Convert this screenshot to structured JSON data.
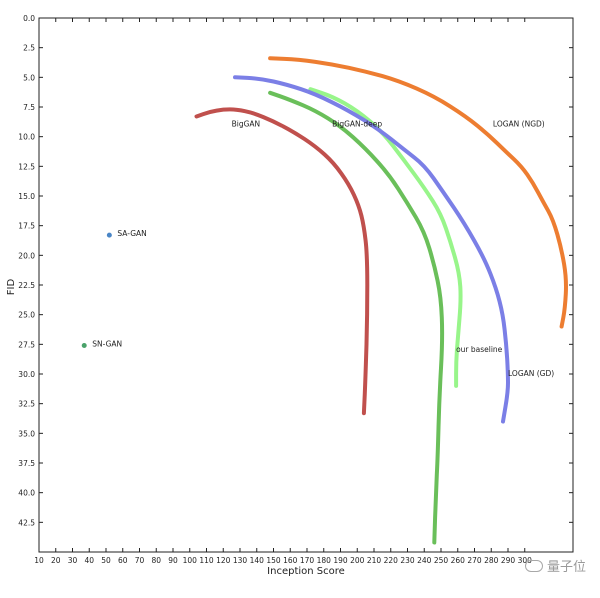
{
  "chart_data": {
    "type": "line",
    "xlabel": "Inception Score",
    "ylabel": "FID",
    "xlim": [
      10,
      325
    ],
    "ylim": [
      45.0,
      0.0
    ],
    "x_ticks": [
      10,
      20,
      30,
      40,
      50,
      60,
      70,
      80,
      90,
      100,
      110,
      120,
      130,
      140,
      150,
      160,
      170,
      180,
      190,
      200,
      210,
      220,
      230,
      240,
      250,
      260,
      270,
      280,
      290,
      300
    ],
    "y_ticks": [
      0.0,
      2.5,
      5.0,
      7.5,
      10.0,
      12.5,
      15.0,
      17.5,
      20.0,
      22.5,
      25.0,
      27.5,
      30.0,
      32.5,
      35.0,
      37.5,
      40.0,
      42.5
    ],
    "series": [
      {
        "name": "BigGAN",
        "color": "#c0504d",
        "points": [
          [
            104,
            8.3
          ],
          [
            112,
            7.9
          ],
          [
            120,
            7.7
          ],
          [
            128,
            7.7
          ],
          [
            138,
            8.0
          ],
          [
            150,
            8.7
          ],
          [
            162,
            9.6
          ],
          [
            175,
            10.8
          ],
          [
            186,
            12.2
          ],
          [
            195,
            14.0
          ],
          [
            201,
            15.8
          ],
          [
            204,
            17.5
          ],
          [
            206,
            20.0
          ],
          [
            206,
            25.0
          ],
          [
            205,
            30.0
          ],
          [
            204,
            33.3
          ]
        ],
        "label": {
          "text": "BigGAN",
          "x": 125,
          "y": 8.9
        }
      },
      {
        "name": "BigGAN-deep",
        "color": "#6abf5a",
        "points": [
          [
            148,
            6.3
          ],
          [
            160,
            6.9
          ],
          [
            175,
            7.8
          ],
          [
            190,
            9.1
          ],
          [
            205,
            11.0
          ],
          [
            219,
            13.2
          ],
          [
            230,
            15.6
          ],
          [
            240,
            18.0
          ],
          [
            246,
            20.8
          ],
          [
            250,
            23.5
          ],
          [
            251,
            27.0
          ],
          [
            249,
            32.0
          ],
          [
            248,
            37.0
          ],
          [
            247,
            40.0
          ],
          [
            246,
            44.2
          ]
        ],
        "label": {
          "text": "BigGAN-deep",
          "x": 185,
          "y": 8.9
        }
      },
      {
        "name": "our baseline",
        "color": "#98f58a",
        "points": [
          [
            172,
            6.0
          ],
          [
            185,
            6.6
          ],
          [
            200,
            7.8
          ],
          [
            215,
            9.6
          ],
          [
            228,
            12.0
          ],
          [
            240,
            14.3
          ],
          [
            250,
            16.5
          ],
          [
            256,
            19.0
          ],
          [
            261,
            21.5
          ],
          [
            262,
            23.8
          ],
          [
            260,
            27.0
          ],
          [
            259,
            29.0
          ],
          [
            259,
            31.0
          ]
        ],
        "label": {
          "text": "our baseline",
          "x": 259,
          "y": 27.9
        }
      },
      {
        "name": "LOGAN (GD)",
        "color": "#7b7fe6",
        "points": [
          [
            127,
            5.0
          ],
          [
            142,
            5.1
          ],
          [
            158,
            5.6
          ],
          [
            175,
            6.4
          ],
          [
            195,
            7.8
          ],
          [
            213,
            9.4
          ],
          [
            228,
            11.1
          ],
          [
            240,
            12.4
          ],
          [
            251,
            14.6
          ],
          [
            264,
            17.3
          ],
          [
            276,
            20.3
          ],
          [
            283,
            22.8
          ],
          [
            287,
            25.0
          ],
          [
            289,
            27.5
          ],
          [
            290,
            30.0
          ],
          [
            290,
            31.5
          ],
          [
            287,
            34.0
          ]
        ],
        "label": {
          "text": "LOGAN (GD)",
          "x": 290,
          "y": 29.9
        }
      },
      {
        "name": "LOGAN (NGD)",
        "color": "#ed7d31",
        "points": [
          [
            148,
            3.4
          ],
          [
            165,
            3.5
          ],
          [
            185,
            3.9
          ],
          [
            205,
            4.5
          ],
          [
            225,
            5.3
          ],
          [
            246,
            6.6
          ],
          [
            265,
            8.3
          ],
          [
            278,
            9.8
          ],
          [
            289,
            11.3
          ],
          [
            298,
            12.5
          ],
          [
            305,
            13.9
          ],
          [
            311,
            15.5
          ],
          [
            317,
            17.0
          ],
          [
            322,
            19.5
          ],
          [
            325,
            22.0
          ],
          [
            324,
            24.5
          ],
          [
            322,
            26.0
          ]
        ],
        "label": {
          "text": "LOGAN (NGD)",
          "x": 281,
          "y": 8.9
        }
      }
    ],
    "points": [
      {
        "name": "SA-GAN",
        "x": 52,
        "y": 18.3,
        "color": "#4a86c6",
        "label": {
          "text": "SA-GAN",
          "x": 55,
          "y": 18.3
        }
      },
      {
        "name": "SN-GAN",
        "x": 37,
        "y": 27.6,
        "color": "#4aa26a",
        "label": {
          "text": "SN-GAN",
          "x": 40,
          "y": 27.6
        }
      }
    ]
  },
  "watermark": {
    "text": "量子位",
    "icon": "wechat-icon"
  }
}
